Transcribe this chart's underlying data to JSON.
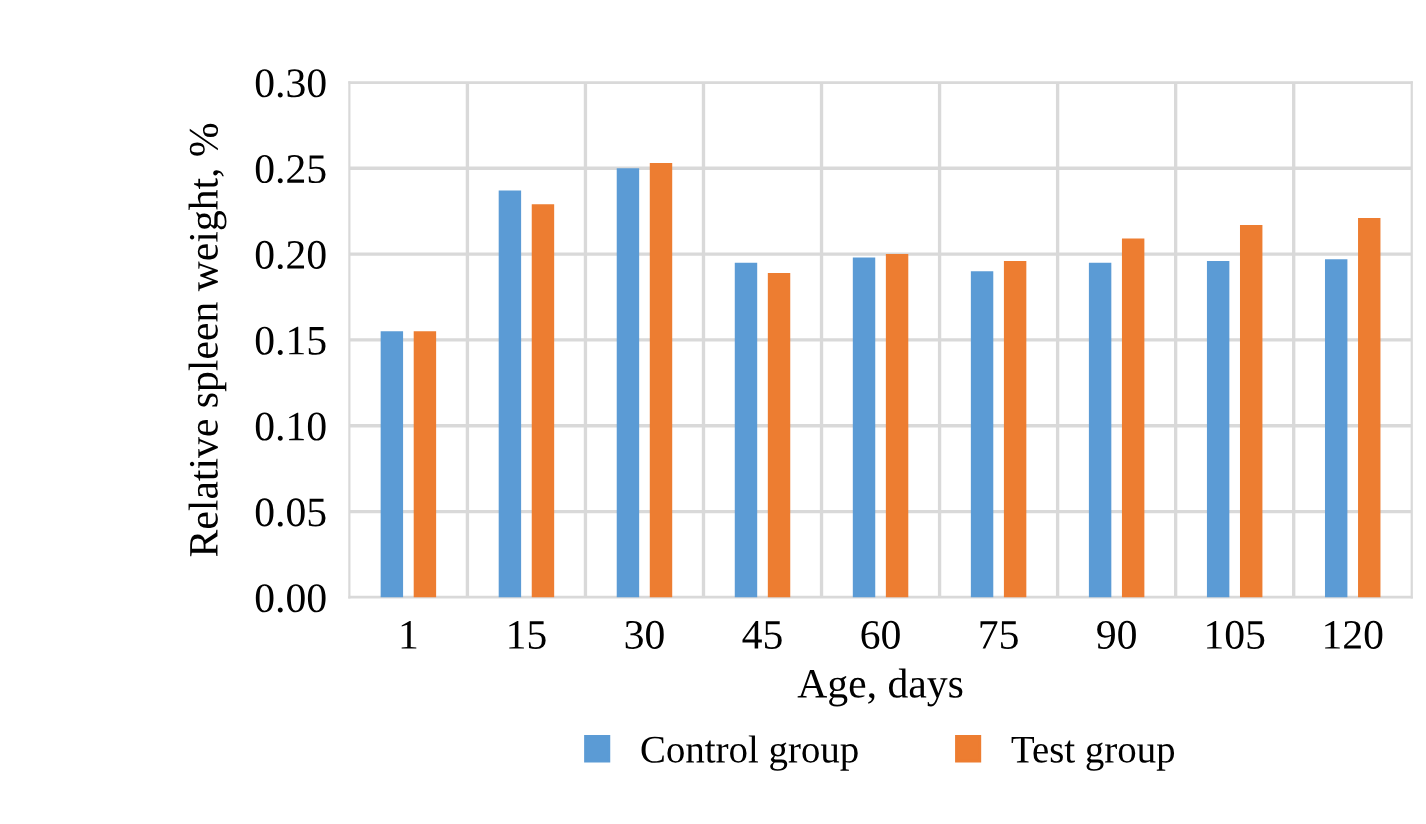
{
  "chart_data": {
    "type": "bar",
    "xlabel": "Age, days",
    "ylabel": "Relative spleen weight, %",
    "categories": [
      "1",
      "15",
      "30",
      "45",
      "60",
      "75",
      "90",
      "105",
      "120"
    ],
    "series": [
      {
        "name": "Control group",
        "color": "#5b9bd5",
        "values": [
          0.155,
          0.237,
          0.25,
          0.195,
          0.198,
          0.19,
          0.195,
          0.196,
          0.197
        ]
      },
      {
        "name": "Test group",
        "color": "#ed7d31",
        "values": [
          0.155,
          0.229,
          0.253,
          0.189,
          0.2,
          0.196,
          0.209,
          0.217,
          0.221
        ]
      }
    ],
    "ylim": [
      0,
      0.3
    ],
    "yticks": [
      {
        "value": 0,
        "label": "0.00"
      },
      {
        "value": 0.05,
        "label": "0.05"
      },
      {
        "value": 0.1,
        "label": "0.10"
      },
      {
        "value": 0.15,
        "label": "0.15"
      },
      {
        "value": 0.2,
        "label": "0.20"
      },
      {
        "value": 0.25,
        "label": "0.25"
      },
      {
        "value": 0.3,
        "label": "0.30"
      }
    ],
    "grid": true,
    "legend": "bottom"
  }
}
